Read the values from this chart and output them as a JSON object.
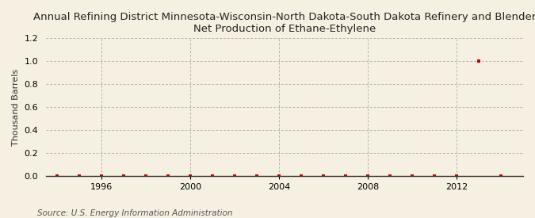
{
  "title": "Annual Refining District Minnesota-Wisconsin-North Dakota-South Dakota Refinery and Blender\nNet Production of Ethane-Ethylene",
  "ylabel": "Thousand Barrels",
  "source": "Source: U.S. Energy Information Administration",
  "background_color": "#f5f0e1",
  "plot_background_color": "#f5f0e1",
  "xlim": [
    1993.5,
    2015.0
  ],
  "ylim": [
    0.0,
    1.2
  ],
  "yticks": [
    0.0,
    0.2,
    0.4,
    0.6,
    0.8,
    1.0,
    1.2
  ],
  "xticks": [
    1996,
    2000,
    2004,
    2008,
    2012
  ],
  "data_years": [
    1994,
    1995,
    1996,
    1997,
    1998,
    1999,
    2000,
    2001,
    2002,
    2003,
    2004,
    2005,
    2006,
    2007,
    2008,
    2009,
    2010,
    2011,
    2012,
    2013,
    2014
  ],
  "data_values": [
    0,
    0,
    0,
    0,
    0,
    0,
    0,
    0,
    0,
    0,
    0,
    0,
    0,
    0,
    0,
    0,
    0,
    0,
    0,
    1.0,
    0
  ],
  "marker_color": "#cc0000",
  "marker_size": 3.5,
  "grid_color": "#999999",
  "title_fontsize": 9.5,
  "axis_fontsize": 8,
  "tick_fontsize": 8,
  "source_fontsize": 7.5
}
